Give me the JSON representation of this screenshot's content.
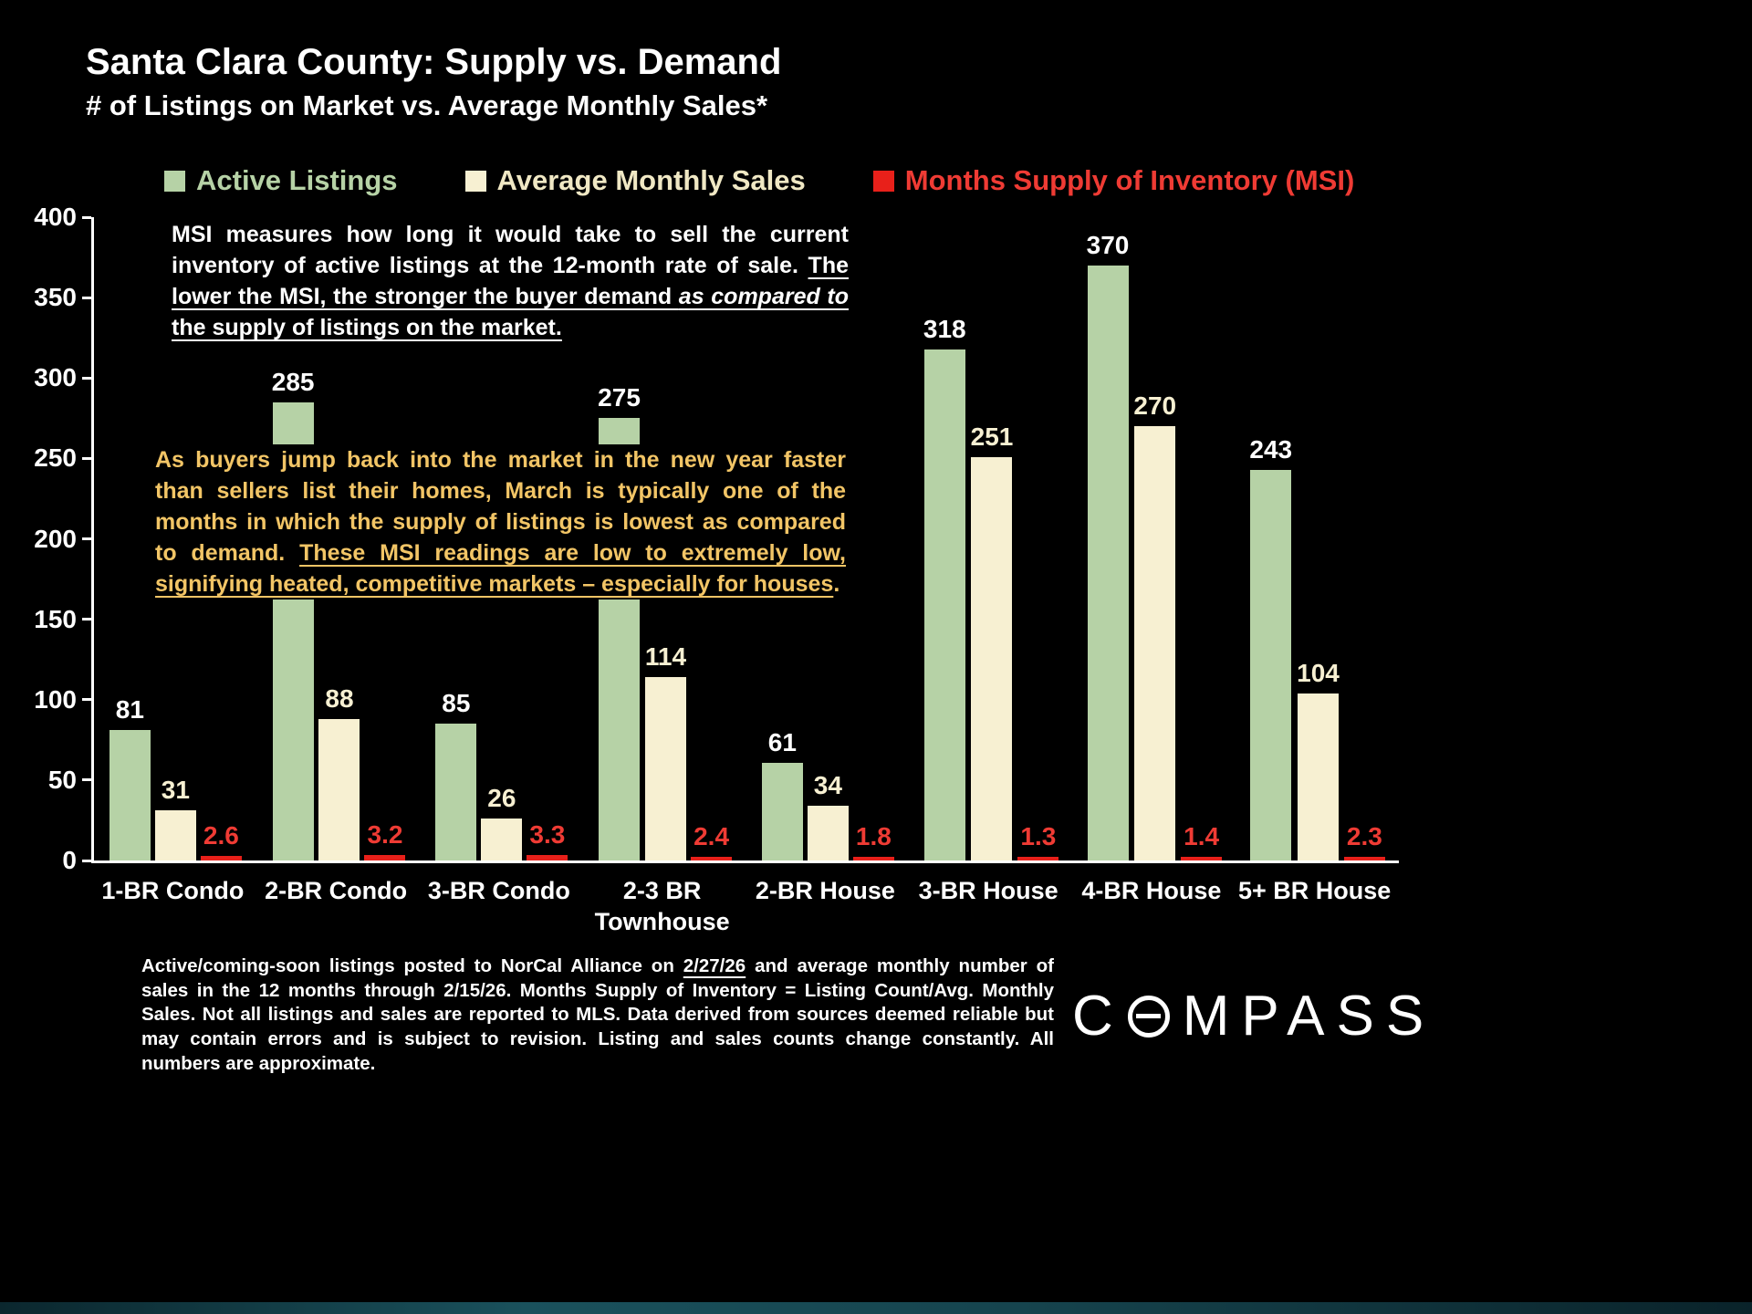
{
  "chart_data": {
    "type": "bar",
    "title": "Santa Clara County: Supply vs. Demand",
    "subtitle": "# of Listings on Market vs. Average Monthly Sales*",
    "categories": [
      "1-BR Condo",
      "2-BR Condo",
      "3-BR Condo",
      "2-3 BR\nTownhouse",
      "2-BR House",
      "3-BR House",
      "4-BR House",
      "5+ BR House"
    ],
    "series": [
      {
        "key": "active-listings",
        "name": "Active Listings",
        "color": "#b6d2a6",
        "legend_color": "#b6d2a6",
        "value_label_color": "#ffffff",
        "values": [
          81,
          285,
          85,
          275,
          61,
          318,
          370,
          243
        ]
      },
      {
        "key": "avg-monthly-sales",
        "name": "Average Monthly Sales",
        "color": "#f7f0d2",
        "legend_color": "#f0e8c4",
        "value_label_color": "#f7f0d2",
        "values": [
          31,
          88,
          26,
          114,
          34,
          251,
          270,
          104
        ]
      },
      {
        "key": "msi",
        "name": "Months Supply of Inventory (MSI)",
        "color": "#e8201a",
        "legend_color": "#ef3b34",
        "value_label_color": "#ef3b34",
        "values": [
          2.6,
          3.2,
          3.3,
          2.4,
          1.8,
          1.3,
          1.4,
          2.3
        ]
      }
    ],
    "ylim": [
      0,
      400
    ],
    "yticks": [
      400,
      350,
      300,
      250,
      200,
      150,
      100,
      50,
      0
    ],
    "grid": false,
    "legend_position": "top"
  },
  "annotations": {
    "msi_note": {
      "seg1": "MSI measures how long it would take to sell the current inventory of active listings at the 12-month rate of sale. ",
      "seg2": "The lower the MSI, the stronger the buyer demand ",
      "seg3": "as compared to",
      "seg4": " the supply of listings on the market."
    },
    "market_note": {
      "seg1": "As buyers jump back into the market in the new year faster than sellers list their homes, March is typically one of the months in which the supply of listings is lowest as compared to demand. ",
      "seg2": "These MSI readings are low to extremely low, signifying heated, competitive markets – especially for houses",
      "seg3": "."
    }
  },
  "footer": {
    "seg1": "Active/coming-soon listings posted to NorCal Alliance on ",
    "date": "2/27/26",
    "seg2": " and average monthly number of sales in the 12 months through 2/15/26. Months Supply of Inventory = Listing Count/Avg. Monthly Sales. Not all listings and sales are reported to MLS. Data derived from sources deemed reliable but may contain errors and is subject to revision. Listing and sales counts change constantly. All numbers are approximate."
  },
  "logo": {
    "c": "C",
    "rest": "MPASS"
  }
}
